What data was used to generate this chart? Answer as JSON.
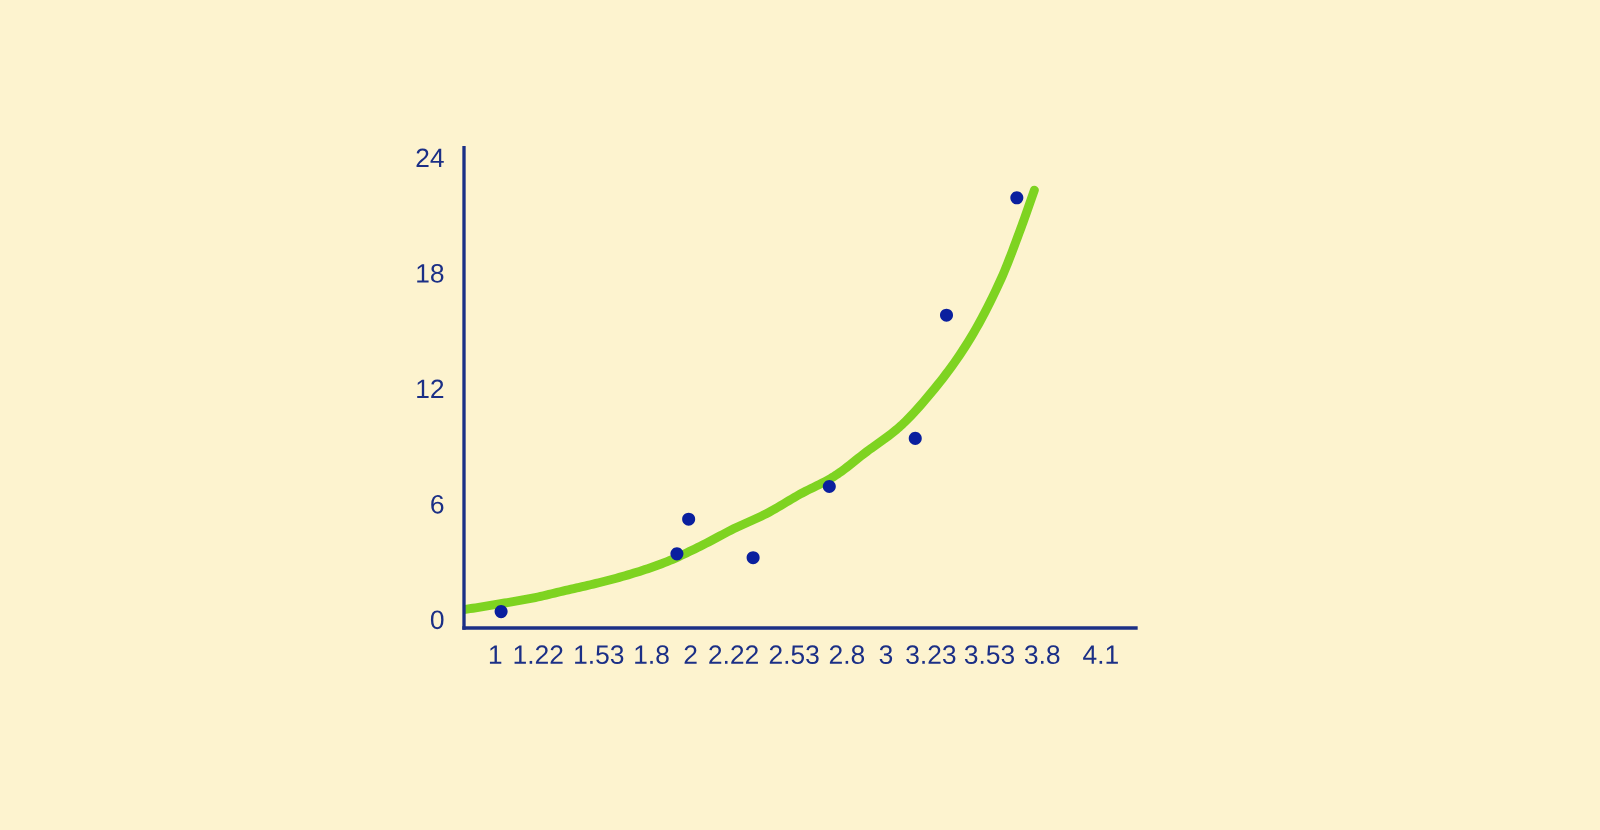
{
  "chart_data": {
    "type": "scatter",
    "grid": false,
    "xlim": [
      0.84,
      4.28
    ],
    "ylim": [
      -0.45,
      24.5
    ],
    "xticks": [
      1,
      1.22,
      1.53,
      1.8,
      2,
      2.22,
      2.53,
      2.8,
      3,
      3.23,
      3.53,
      3.8,
      4.1
    ],
    "yticks": [
      0,
      6,
      12,
      18,
      24
    ],
    "series": [
      {
        "type": "line",
        "color": "#7ed321",
        "x": [
          0.84,
          1.02,
          1.19,
          1.36,
          1.53,
          1.71,
          1.88,
          2.05,
          2.22,
          2.39,
          2.56,
          2.73,
          2.9,
          3.07,
          3.25,
          3.42,
          3.59,
          3.69,
          3.76
        ],
        "values": [
          0.5,
          0.8,
          1.1,
          1.5,
          1.9,
          2.4,
          3.0,
          3.8,
          4.7,
          5.5,
          6.5,
          7.4,
          8.7,
          10.0,
          12.0,
          14.4,
          17.7,
          20.3,
          22.3
        ]
      },
      {
        "marker": "circle",
        "color": "#0a1f9e",
        "x": [
          1.03,
          1.93,
          1.99,
          2.32,
          2.71,
          3.15,
          3.31,
          3.67
        ],
        "values": [
          0.4,
          3.4,
          5.2,
          3.2,
          6.9,
          9.4,
          15.8,
          21.9
        ]
      }
    ]
  }
}
